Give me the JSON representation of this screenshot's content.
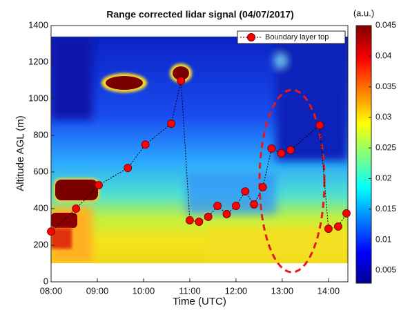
{
  "chart_data": {
    "type": "line",
    "title": "Range corrected lidar signal (04/07/2017)",
    "x_label": "Time (UTC)",
    "y_label": "Altitude AGL (m)",
    "xlim": [
      8,
      14.42
    ],
    "ylim": [
      0,
      1400
    ],
    "xticks": [
      {
        "value": 8,
        "label": "08:00"
      },
      {
        "value": 9,
        "label": "09:00"
      },
      {
        "value": 10,
        "label": "10:00"
      },
      {
        "value": 11,
        "label": "11:00"
      },
      {
        "value": 12,
        "label": "12:00"
      },
      {
        "value": 13,
        "label": "13:00"
      },
      {
        "value": 14,
        "label": "14:00"
      }
    ],
    "yticks": [
      0,
      200,
      400,
      600,
      800,
      1000,
      1200,
      1400
    ],
    "series": [
      {
        "name": "Boundary layer top",
        "color": "#000000",
        "marker_color": "#ff0000",
        "x": [
          8.0,
          8.54,
          9.03,
          9.66,
          10.04,
          10.6,
          10.81,
          11.0,
          11.2,
          11.4,
          11.6,
          11.8,
          12.0,
          12.2,
          12.39,
          12.58,
          12.77,
          12.98,
          13.18,
          13.81,
          14.0,
          14.21,
          14.39
        ],
        "values": [
          275,
          400,
          528,
          622,
          750,
          864,
          1098,
          336,
          328,
          355,
          415,
          370,
          415,
          494,
          423,
          517,
          728,
          702,
          720,
          856,
          290,
          302,
          374
        ]
      }
    ],
    "legend": "upper right",
    "colorbar": {
      "label": "(a.u.)",
      "lim": [
        0.0029,
        0.045
      ],
      "ticks": [
        0.005,
        0.01,
        0.015,
        0.02,
        0.025,
        0.03,
        0.035,
        0.04,
        0.045
      ]
    }
  }
}
